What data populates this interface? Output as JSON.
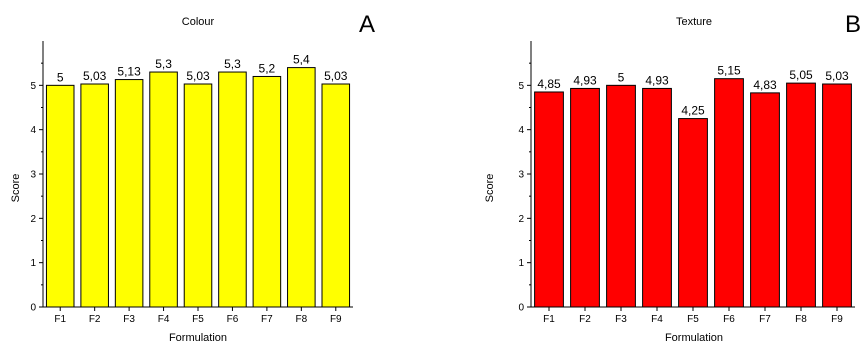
{
  "chart_data": [
    {
      "type": "bar",
      "panel_label": "A",
      "title": "Colour",
      "xlabel": "Formulation",
      "ylabel": "Score",
      "categories": [
        "F1",
        "F2",
        "F3",
        "F4",
        "F5",
        "F6",
        "F7",
        "F8",
        "F9"
      ],
      "values": [
        5,
        5.03,
        5.13,
        5.3,
        5.03,
        5.3,
        5.2,
        5.4,
        5.03
      ],
      "value_labels": [
        "5",
        "5,03",
        "5,13",
        "5,3",
        "5,03",
        "5,3",
        "5,2",
        "5,4",
        "5,03"
      ],
      "yticks": [
        "0",
        "1",
        "2",
        "3",
        "4",
        "5"
      ],
      "ylim": [
        0,
        6
      ],
      "bar_color": "#ffff00",
      "grid": false,
      "legend": "none"
    },
    {
      "type": "bar",
      "panel_label": "B",
      "title": "Texture",
      "xlabel": "Formulation",
      "ylabel": "Score",
      "categories": [
        "F1",
        "F2",
        "F3",
        "F4",
        "F5",
        "F6",
        "F7",
        "F8",
        "F9"
      ],
      "values": [
        4.85,
        4.93,
        5,
        4.93,
        4.25,
        5.15,
        4.83,
        5.05,
        5.03
      ],
      "value_labels": [
        "4,85",
        "4,93",
        "5",
        "4,93",
        "4,25",
        "5,15",
        "4,83",
        "5,05",
        "5,03"
      ],
      "yticks": [
        "0",
        "1",
        "2",
        "3",
        "4",
        "5"
      ],
      "ylim": [
        0,
        6
      ],
      "bar_color": "#ff0000",
      "grid": false,
      "legend": "none"
    }
  ]
}
